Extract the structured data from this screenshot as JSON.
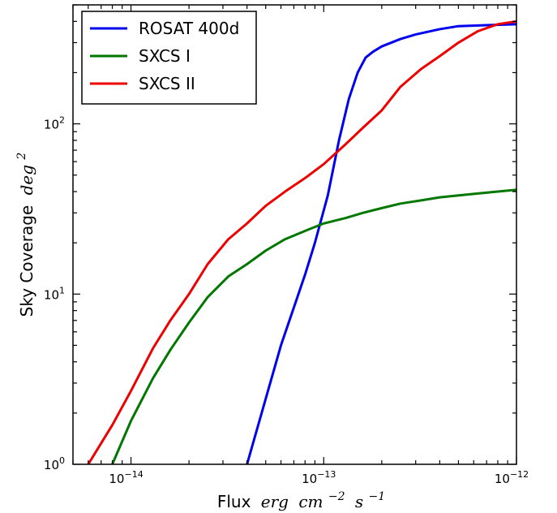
{
  "chart_data": {
    "type": "line",
    "xscale": "log",
    "yscale": "log",
    "xlim": [
      5e-15,
      1e-12
    ],
    "ylim": [
      1,
      500
    ],
    "xlabel": {
      "text": "Flux",
      "math_parts": [
        [
          "erg",
          ""
        ],
        [
          "cm",
          "−2"
        ],
        [
          "s",
          "−1"
        ]
      ]
    },
    "ylabel": {
      "text": "Sky Coverage",
      "math_base": "deg",
      "math_sup": "2"
    },
    "xticks": [
      {
        "value": 1e-14,
        "base": "10",
        "exp": "−14"
      },
      {
        "value": 1e-13,
        "base": "10",
        "exp": "−13"
      },
      {
        "value": 1e-12,
        "base": "10",
        "exp": "−12"
      }
    ],
    "yticks": [
      {
        "value": 1,
        "base": "10",
        "exp": "0"
      },
      {
        "value": 10,
        "base": "10",
        "exp": "1"
      },
      {
        "value": 100,
        "base": "10",
        "exp": "2"
      }
    ],
    "grid": false,
    "legend_position": "top-left",
    "series": [
      {
        "name": "ROSAT 400d",
        "color": "#0000ee",
        "x": [
          4e-14,
          6e-14,
          8e-14,
          9e-14,
          1.05e-13,
          1.2e-13,
          1.35e-13,
          1.5e-13,
          1.65e-13,
          1.8e-13,
          2e-13,
          2.5e-13,
          3e-13,
          4e-13,
          5e-13,
          7e-13,
          1e-12
        ],
        "y": [
          1,
          5,
          13,
          20,
          38,
          80,
          140,
          200,
          245,
          265,
          285,
          315,
          335,
          360,
          375,
          380,
          385
        ]
      },
      {
        "name": "SXCS I",
        "color": "#007700",
        "x": [
          8e-15,
          1e-14,
          1.3e-14,
          1.6e-14,
          2e-14,
          2.5e-14,
          3.2e-14,
          4e-14,
          5e-14,
          6.3e-14,
          8e-14,
          1e-13,
          1.3e-13,
          1.6e-13,
          2e-13,
          2.5e-13,
          3.2e-13,
          4e-13,
          5e-13,
          6.3e-13,
          8e-13,
          1e-12
        ],
        "y": [
          1,
          1.8,
          3.2,
          4.7,
          6.8,
          9.6,
          12.7,
          15,
          18,
          21,
          23.5,
          26,
          28,
          30,
          32,
          34,
          35.5,
          37,
          38,
          39,
          40,
          41
        ]
      },
      {
        "name": "SXCS II",
        "color": "#ee0000",
        "x": [
          6e-15,
          8e-15,
          1e-14,
          1.3e-14,
          1.6e-14,
          2e-14,
          2.5e-14,
          3.2e-14,
          4e-14,
          5e-14,
          6.3e-14,
          8e-14,
          1e-13,
          1.3e-13,
          1.6e-13,
          2e-13,
          2.5e-13,
          3.2e-13,
          4e-13,
          5e-13,
          6.3e-13,
          8e-13,
          1e-12
        ],
        "y": [
          1,
          1.7,
          2.7,
          4.8,
          7,
          10,
          15,
          21,
          26,
          33,
          40,
          48,
          58,
          76,
          95,
          120,
          165,
          210,
          250,
          300,
          350,
          385,
          400
        ]
      }
    ]
  }
}
